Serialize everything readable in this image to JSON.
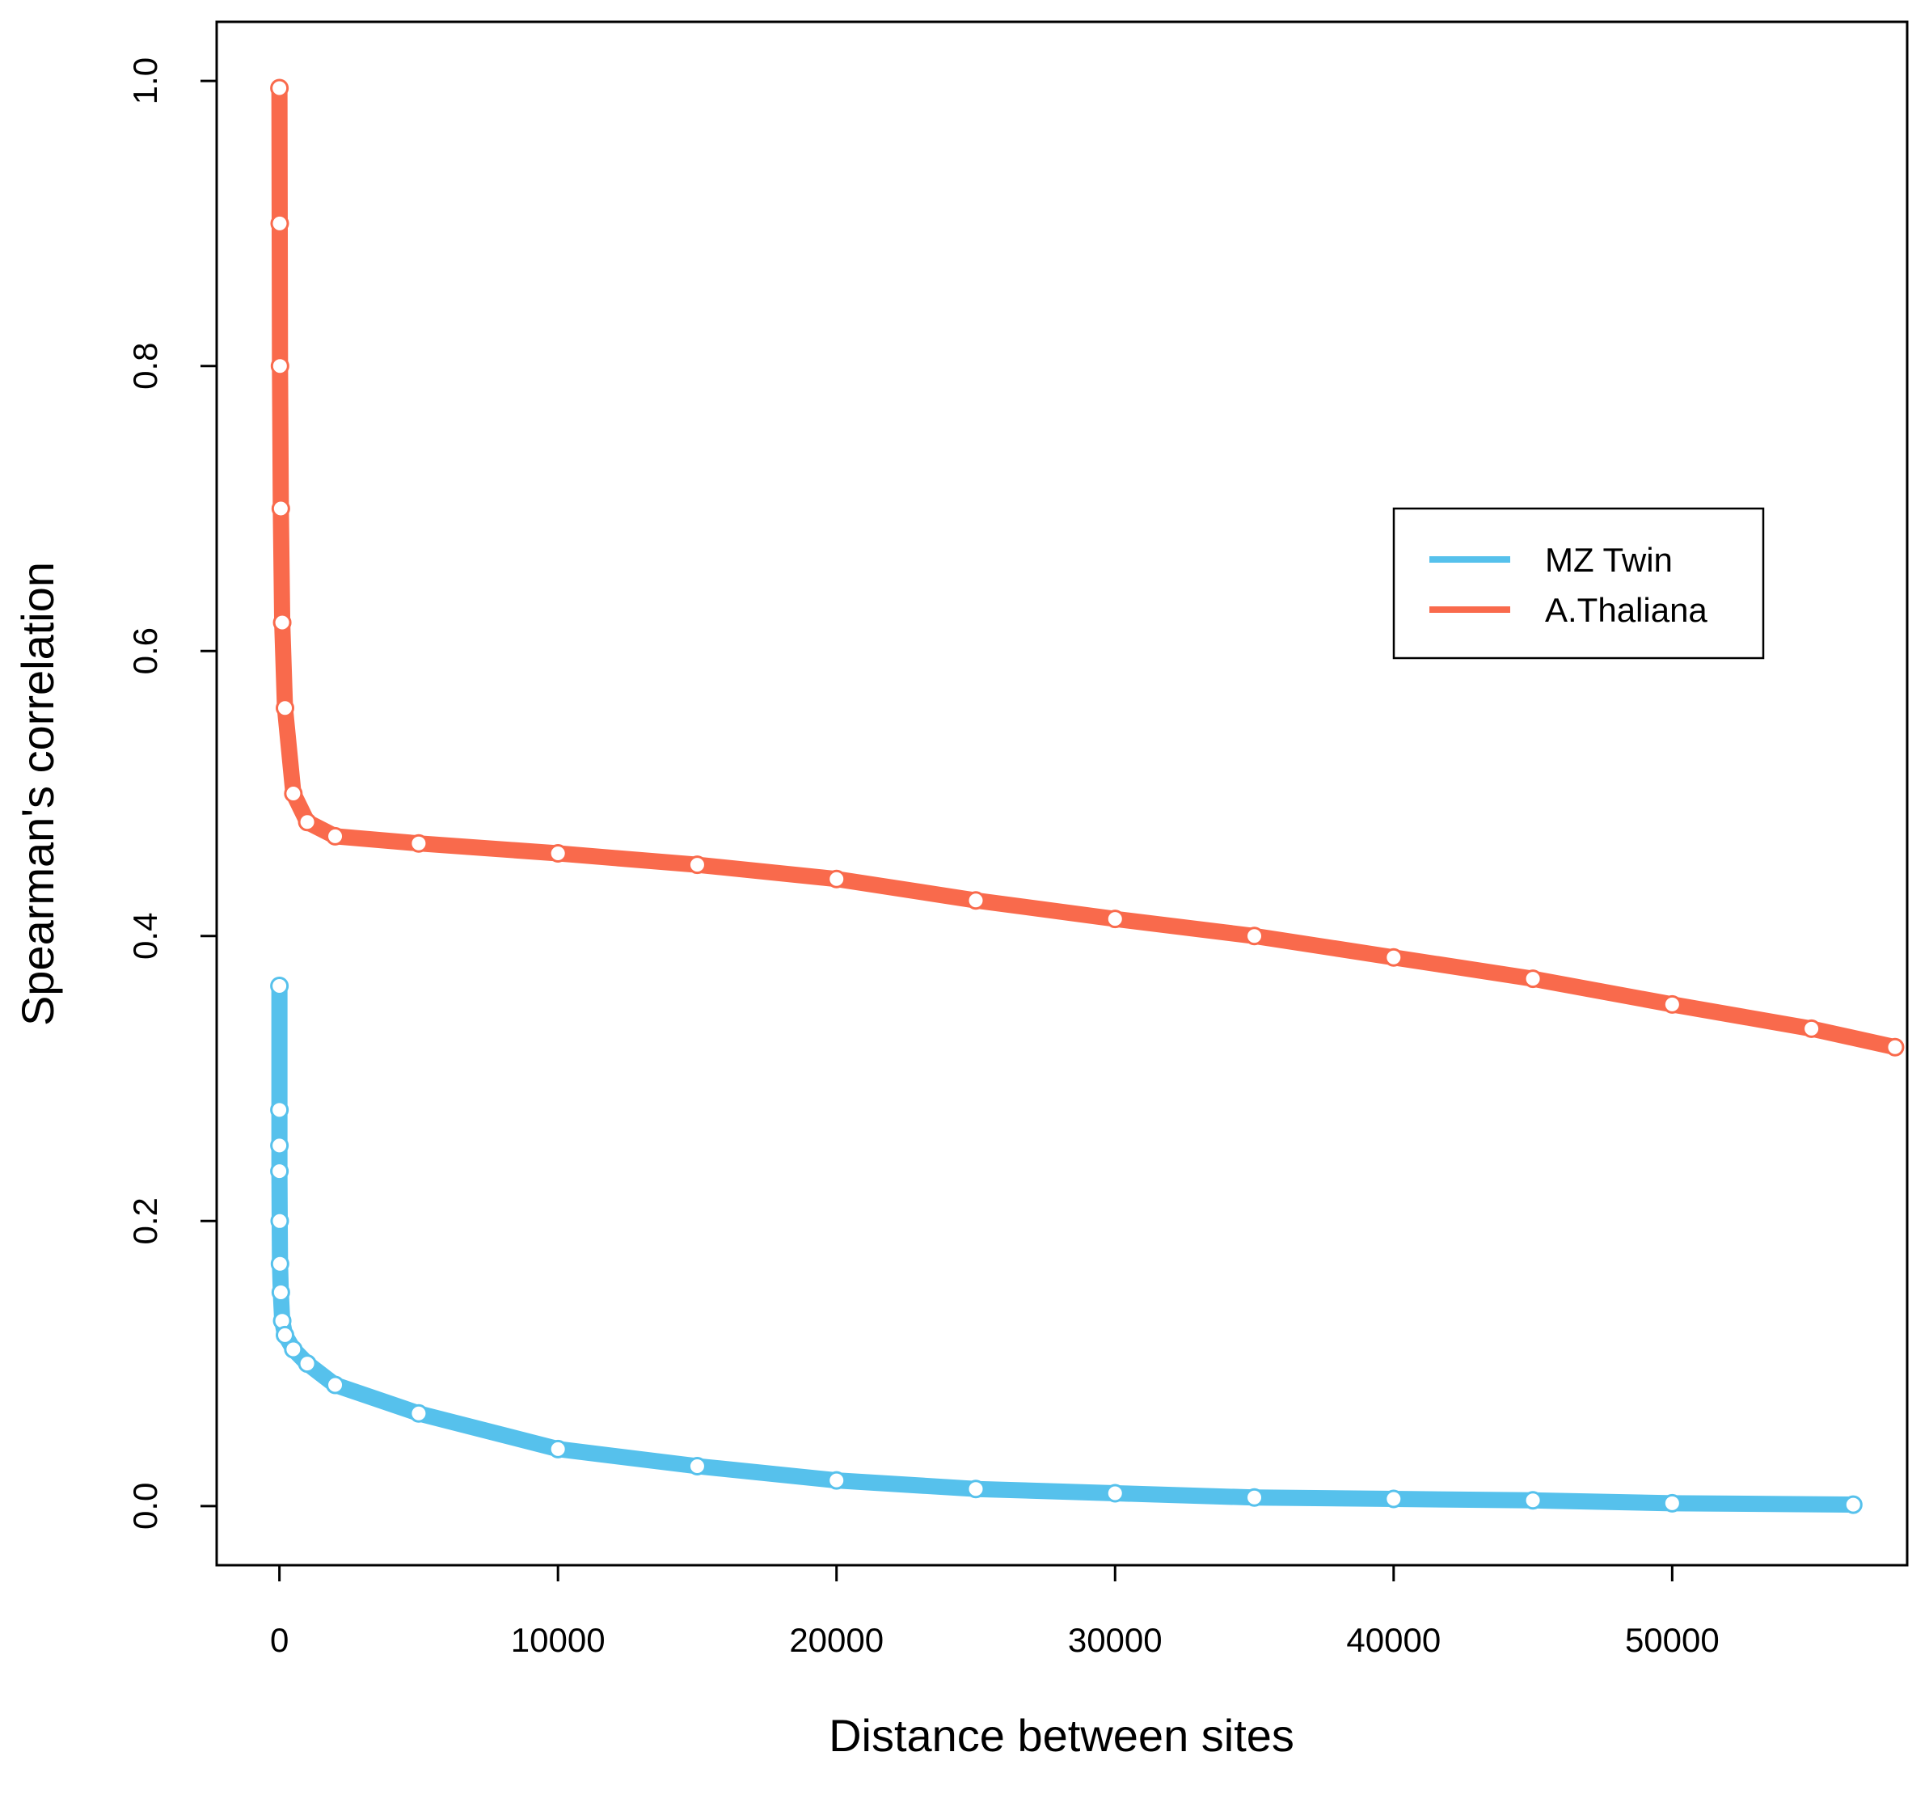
{
  "chart_data": {
    "type": "scatter",
    "xlabel": "Distance between sites",
    "ylabel": "Spearman's correlation",
    "xlim": [
      -2253,
      58436
    ],
    "ylim": [
      -0.0415,
      1.0415
    ],
    "xticks": [
      0,
      10000,
      20000,
      30000,
      40000,
      50000
    ],
    "yticks": [
      {
        "value": 0,
        "label": "0.0"
      },
      0.2,
      0.4,
      0.6,
      0.8,
      {
        "value": 1,
        "label": "1.0"
      }
    ],
    "legend": "upper right",
    "series": [
      {
        "name": "MZ Twin",
        "color": "#56c1ec",
        "x": [
          0,
          0,
          0,
          0,
          10,
          20,
          50,
          100,
          200,
          500,
          1000,
          2000,
          5000,
          10000,
          15000,
          20000,
          25000,
          30000,
          35000,
          40000,
          45000,
          50000,
          56500
        ],
        "values": [
          0.365,
          0.278,
          0.253,
          0.235,
          0.2,
          0.17,
          0.15,
          0.13,
          0.12,
          0.11,
          0.1,
          0.085,
          0.065,
          0.04,
          0.028,
          0.018,
          0.012,
          0.009,
          0.006,
          0.005,
          0.004,
          0.002,
          0.001
        ]
      },
      {
        "name": "A.Thaliana",
        "color": "#f96a4c",
        "x": [
          0,
          10,
          20,
          50,
          100,
          200,
          500,
          1000,
          2000,
          5000,
          10000,
          15000,
          20000,
          25000,
          30000,
          35000,
          40000,
          45000,
          50000,
          55000,
          58000
        ],
        "values": [
          0.995,
          0.9,
          0.8,
          0.7,
          0.62,
          0.56,
          0.5,
          0.48,
          0.47,
          0.465,
          0.458,
          0.45,
          0.44,
          0.425,
          0.412,
          0.4,
          0.385,
          0.37,
          0.352,
          0.335,
          0.322
        ]
      }
    ]
  }
}
